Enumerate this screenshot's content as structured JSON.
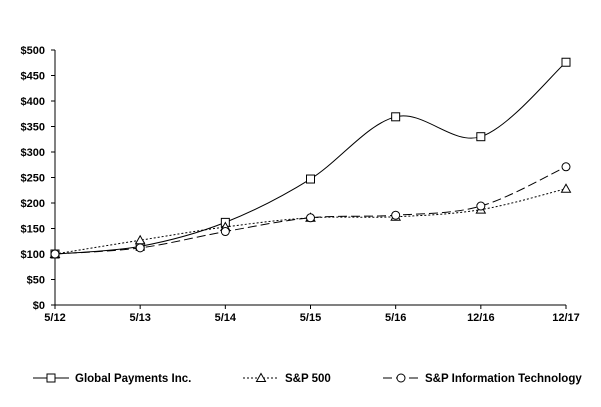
{
  "chart_data": {
    "type": "line",
    "title": "",
    "xlabel": "",
    "ylabel": "",
    "categories": [
      "5/12",
      "5/13",
      "5/14",
      "5/15",
      "5/16",
      "12/16",
      "12/17"
    ],
    "ylim": [
      0,
      500
    ],
    "yticks": [
      "$0",
      "$50",
      "$100",
      "$150",
      "$200",
      "$250",
      "$300",
      "$350",
      "$400",
      "$450",
      "$500"
    ],
    "grid": false,
    "legend_position": "bottom",
    "series": [
      {
        "name": "Global Payments Inc.",
        "marker": "square",
        "line_style": "solid",
        "values": [
          100,
          115,
          162,
          247,
          369,
          330,
          476
        ]
      },
      {
        "name": "S&P 500",
        "marker": "triangle",
        "line_style": "dotted",
        "values": [
          100,
          127,
          153,
          171,
          173,
          187,
          228
        ]
      },
      {
        "name": "S&P Information Technology",
        "marker": "circle",
        "line_style": "dashed",
        "values": [
          100,
          112,
          144,
          171,
          176,
          194,
          271
        ]
      }
    ]
  }
}
